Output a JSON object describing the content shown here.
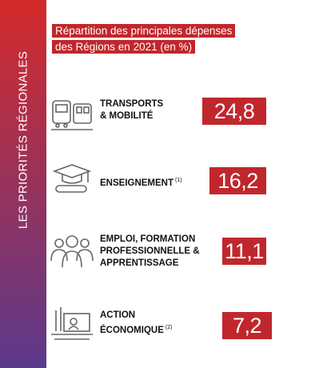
{
  "sidebar": {
    "label": "LES PRIORITÉS RÉGIONALES"
  },
  "header": {
    "title": [
      "Répartition des principales dépenses",
      "des Régions en 2021 (en %)"
    ]
  },
  "items": [
    {
      "label": [
        "TRANSPORTS",
        "& MOBILITÉ"
      ],
      "value": "24,8 %"
    },
    {
      "label": [
        "ENSEIGNEMENT"
      ],
      "note": "(1)",
      "value": "16,2 %"
    },
    {
      "label": [
        "EMPLOI, FORMATION",
        "PROFESSIONNELLE &",
        "APPRENTISSAGE"
      ],
      "value": "11,1 %"
    },
    {
      "label": [
        "ACTION",
        "ÉCONOMIQUE"
      ],
      "note": "(2)",
      "value": "7,2 %"
    }
  ]
}
